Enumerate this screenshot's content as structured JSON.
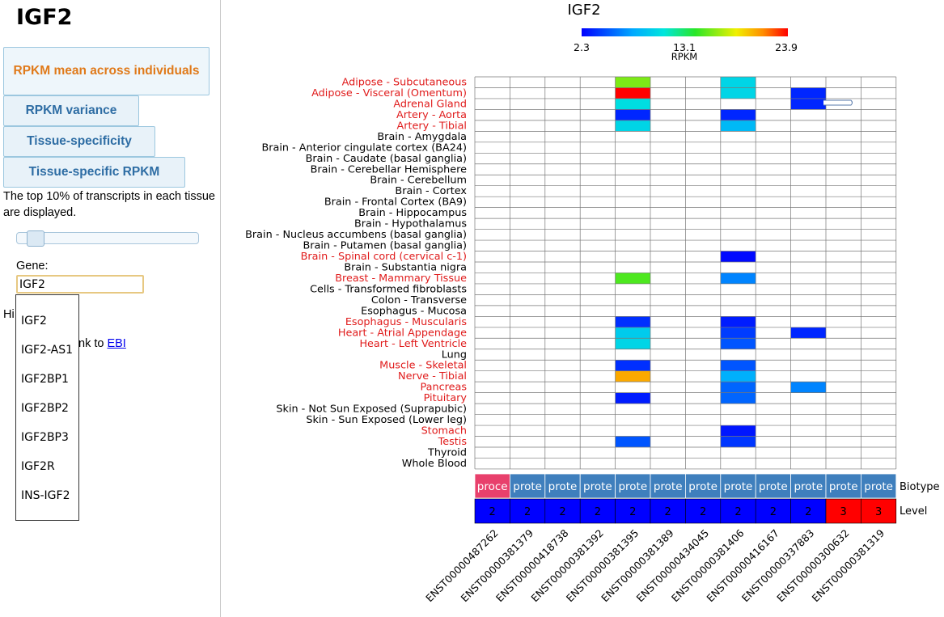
{
  "gene": "IGF2",
  "tabs": [
    {
      "label": "RPKM mean across individuals",
      "active": true
    },
    {
      "label": "RPKM variance",
      "active": false
    },
    {
      "label": "Tissue-specificity",
      "active": false
    },
    {
      "label": "Tissue-specific RPKM",
      "active": false
    }
  ],
  "description": "The top 10% of transcripts in each tissue are displayed.",
  "gene_field": {
    "label": "Gene:",
    "value": "IGF2"
  },
  "hidden_text": "Hi",
  "link": {
    "prefix": "nk to",
    "label": "EBI"
  },
  "autocomplete": [
    "IGF2",
    "IGF2-AS1",
    "IGF2BP1",
    "IGF2BP2",
    "IGF2BP3",
    "IGF2R",
    "INS-IGF2"
  ],
  "colors": {
    "tissue_highlight": "#e01b1b",
    "tab_active": "#e07a1a",
    "tab_text": "#2e6da4",
    "biotype_processed": "#e8406c",
    "biotype_protein": "#3f7fbd",
    "level_2": "#0000ff",
    "level_3": "#ff0000"
  },
  "chart_data": {
    "type": "heatmap",
    "title": "IGF2",
    "colorbar": {
      "min": 2.3,
      "mid": 13.1,
      "max": 23.9,
      "label": "RPKM",
      "ticks": [
        "2.3",
        "13.1",
        "23.9"
      ]
    },
    "tissues": [
      {
        "name": "Adipose - Subcutaneous",
        "highlight": true
      },
      {
        "name": "Adipose - Visceral (Omentum)",
        "highlight": true
      },
      {
        "name": "Adrenal Gland",
        "highlight": true
      },
      {
        "name": "Artery - Aorta",
        "highlight": true
      },
      {
        "name": "Artery - Tibial",
        "highlight": true
      },
      {
        "name": "Brain - Amygdala",
        "highlight": false
      },
      {
        "name": "Brain - Anterior cingulate cortex (BA24)",
        "highlight": false
      },
      {
        "name": "Brain - Caudate (basal ganglia)",
        "highlight": false
      },
      {
        "name": "Brain - Cerebellar Hemisphere",
        "highlight": false
      },
      {
        "name": "Brain - Cerebellum",
        "highlight": false
      },
      {
        "name": "Brain - Cortex",
        "highlight": false
      },
      {
        "name": "Brain - Frontal Cortex (BA9)",
        "highlight": false
      },
      {
        "name": "Brain - Hippocampus",
        "highlight": false
      },
      {
        "name": "Brain - Hypothalamus",
        "highlight": false
      },
      {
        "name": "Brain - Nucleus accumbens (basal ganglia)",
        "highlight": false
      },
      {
        "name": "Brain - Putamen (basal ganglia)",
        "highlight": false
      },
      {
        "name": "Brain - Spinal cord (cervical c-1)",
        "highlight": true
      },
      {
        "name": "Brain - Substantia nigra",
        "highlight": false
      },
      {
        "name": "Breast - Mammary Tissue",
        "highlight": true
      },
      {
        "name": "Cells - Transformed fibroblasts",
        "highlight": false
      },
      {
        "name": "Colon - Transverse",
        "highlight": false
      },
      {
        "name": "Esophagus - Mucosa",
        "highlight": false
      },
      {
        "name": "Esophagus - Muscularis",
        "highlight": true
      },
      {
        "name": "Heart - Atrial Appendage",
        "highlight": true
      },
      {
        "name": "Heart - Left Ventricle",
        "highlight": true
      },
      {
        "name": "Lung",
        "highlight": false
      },
      {
        "name": "Muscle - Skeletal",
        "highlight": true
      },
      {
        "name": "Nerve - Tibial",
        "highlight": true
      },
      {
        "name": "Pancreas",
        "highlight": true
      },
      {
        "name": "Pituitary",
        "highlight": true
      },
      {
        "name": "Skin - Not Sun Exposed (Suprapubic)",
        "highlight": false
      },
      {
        "name": "Skin - Sun Exposed (Lower leg)",
        "highlight": false
      },
      {
        "name": "Stomach",
        "highlight": true
      },
      {
        "name": "Testis",
        "highlight": true
      },
      {
        "name": "Thyroid",
        "highlight": false
      },
      {
        "name": "Whole Blood",
        "highlight": false
      }
    ],
    "transcripts": [
      "ENST00000487262",
      "ENST00000381379",
      "ENST00000418738",
      "ENST00000381392",
      "ENST00000381395",
      "ENST00000381389",
      "ENST00000434045",
      "ENST00000381406",
      "ENST00000416167",
      "ENST00000337883",
      "ENST00000300632",
      "ENST00000381319"
    ],
    "biotype": [
      "proce",
      "prote",
      "prote",
      "prote",
      "prote",
      "prote",
      "prote",
      "prote",
      "prote",
      "prote",
      "prote",
      "prote"
    ],
    "biotype_kind": [
      "processed",
      "protein",
      "protein",
      "protein",
      "protein",
      "protein",
      "protein",
      "protein",
      "protein",
      "protein",
      "protein",
      "protein"
    ],
    "level": [
      "2",
      "2",
      "2",
      "2",
      "2",
      "2",
      "2",
      "2",
      "2",
      "2",
      "3",
      "3"
    ],
    "row_labels": {
      "biotype": "Biotype",
      "level": "Level"
    },
    "cells": [
      {
        "tissue": 0,
        "transcript": 4,
        "value": 16.0
      },
      {
        "tissue": 0,
        "transcript": 7,
        "value": 10.0
      },
      {
        "tissue": 1,
        "transcript": 4,
        "value": 23.9
      },
      {
        "tissue": 1,
        "transcript": 7,
        "value": 10.0
      },
      {
        "tissue": 1,
        "transcript": 9,
        "value": 3.5
      },
      {
        "tissue": 2,
        "transcript": 4,
        "value": 10.5
      },
      {
        "tissue": 2,
        "transcript": 9,
        "value": 3.5
      },
      {
        "tissue": 3,
        "transcript": 4,
        "value": 3.5
      },
      {
        "tissue": 3,
        "transcript": 7,
        "value": 3.5
      },
      {
        "tissue": 4,
        "transcript": 4,
        "value": 10.0
      },
      {
        "tissue": 4,
        "transcript": 7,
        "value": 8.5
      },
      {
        "tissue": 16,
        "transcript": 7,
        "value": 2.6
      },
      {
        "tissue": 18,
        "transcript": 4,
        "value": 15.0
      },
      {
        "tissue": 18,
        "transcript": 7,
        "value": 6.5
      },
      {
        "tissue": 22,
        "transcript": 4,
        "value": 3.8
      },
      {
        "tissue": 22,
        "transcript": 7,
        "value": 3.2
      },
      {
        "tissue": 23,
        "transcript": 4,
        "value": 9.5
      },
      {
        "tissue": 23,
        "transcript": 7,
        "value": 4.2
      },
      {
        "tissue": 23,
        "transcript": 9,
        "value": 3.5
      },
      {
        "tissue": 24,
        "transcript": 4,
        "value": 10.0
      },
      {
        "tissue": 24,
        "transcript": 7,
        "value": 5.0
      },
      {
        "tissue": 26,
        "transcript": 4,
        "value": 3.8
      },
      {
        "tissue": 26,
        "transcript": 7,
        "value": 5.0
      },
      {
        "tissue": 27,
        "transcript": 4,
        "value": 20.5
      },
      {
        "tissue": 27,
        "transcript": 7,
        "value": 8.0
      },
      {
        "tissue": 28,
        "transcript": 7,
        "value": 5.5
      },
      {
        "tissue": 28,
        "transcript": 9,
        "value": 6.5
      },
      {
        "tissue": 29,
        "transcript": 4,
        "value": 3.2
      },
      {
        "tissue": 29,
        "transcript": 7,
        "value": 5.5
      },
      {
        "tissue": 32,
        "transcript": 7,
        "value": 3.0
      },
      {
        "tissue": 33,
        "transcript": 4,
        "value": 5.0
      },
      {
        "tissue": 33,
        "transcript": 7,
        "value": 4.0
      }
    ]
  }
}
